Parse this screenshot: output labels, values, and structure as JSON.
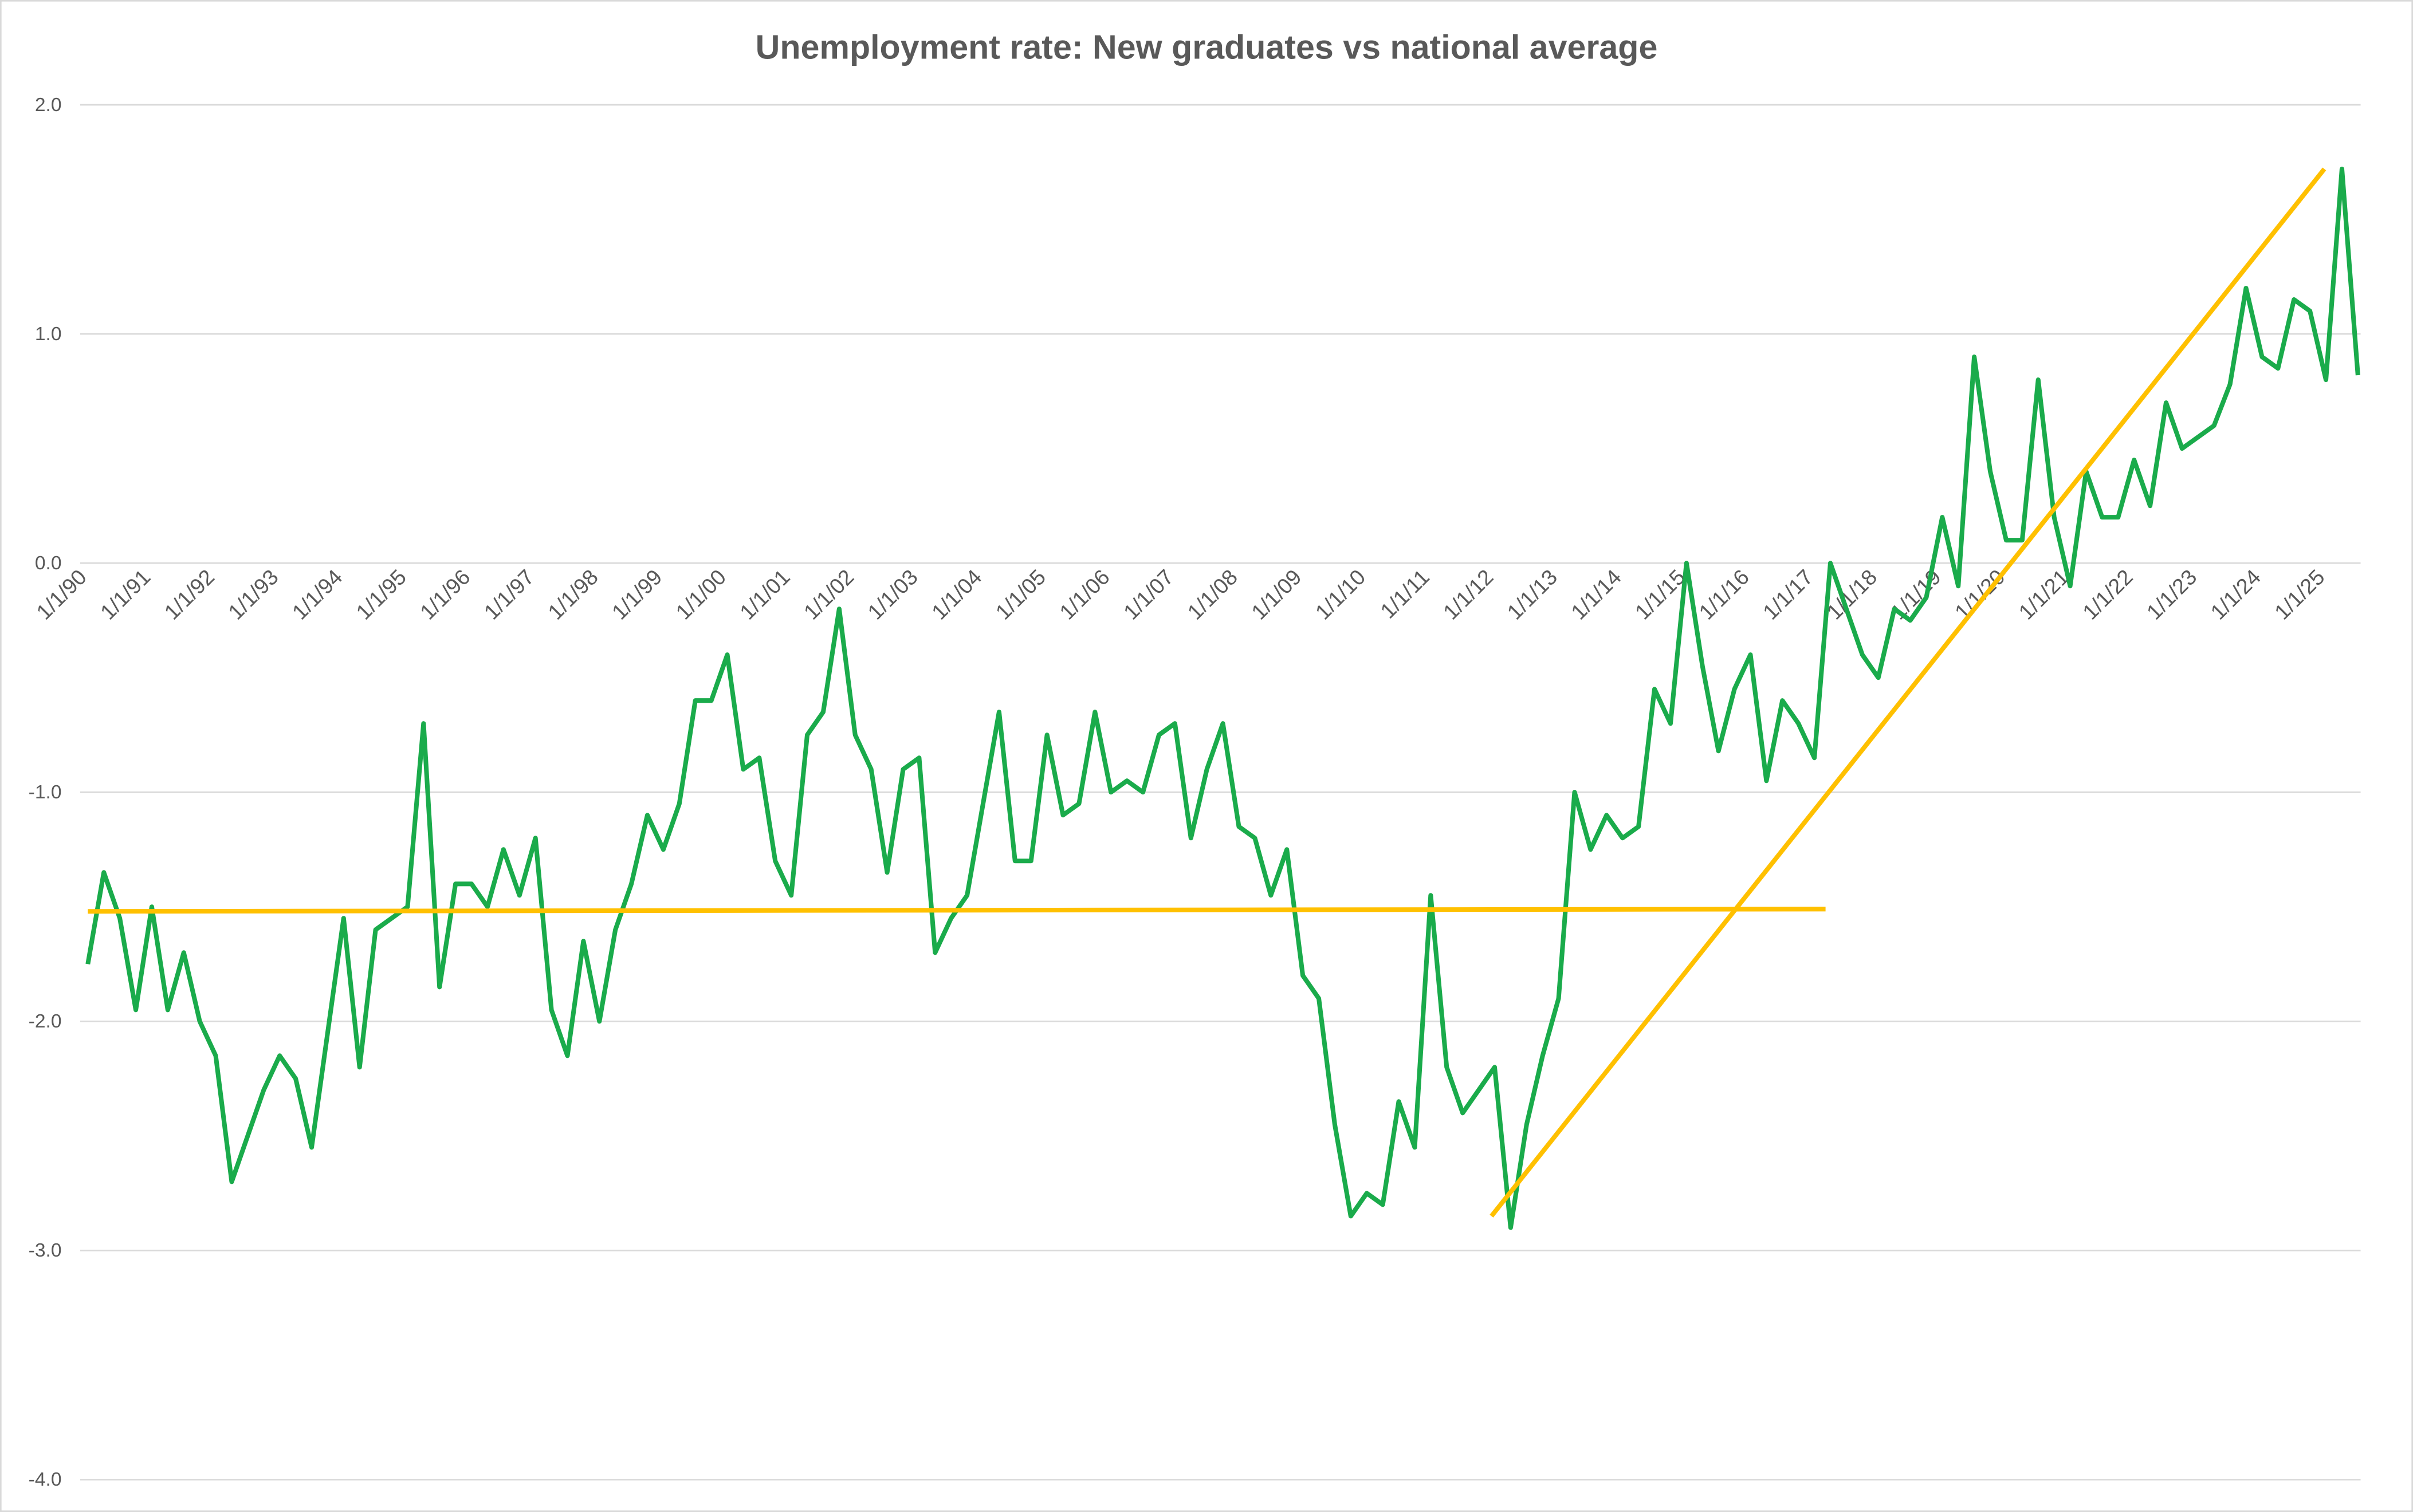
{
  "chart_data": {
    "type": "line",
    "title": "Unemployment rate: New graduates vs national average",
    "categories": [
      "1/1/90",
      null,
      null,
      null,
      "1/1/91",
      null,
      null,
      null,
      "1/1/92",
      null,
      null,
      null,
      "1/1/93",
      null,
      null,
      null,
      "1/1/94",
      null,
      null,
      null,
      "1/1/95",
      null,
      null,
      null,
      "1/1/96",
      null,
      null,
      null,
      "1/1/97",
      null,
      null,
      null,
      "1/1/98",
      null,
      null,
      null,
      "1/1/99",
      null,
      null,
      null,
      "1/1/00",
      null,
      null,
      null,
      "1/1/01",
      null,
      null,
      null,
      "1/1/02",
      null,
      null,
      null,
      "1/1/03",
      null,
      null,
      null,
      "1/1/04",
      null,
      null,
      null,
      "1/1/05",
      null,
      null,
      null,
      "1/1/06",
      null,
      null,
      null,
      "1/1/07",
      null,
      null,
      null,
      "1/1/08",
      null,
      null,
      null,
      "1/1/09",
      null,
      null,
      null,
      "1/1/10",
      null,
      null,
      null,
      "1/1/11",
      null,
      null,
      null,
      "1/1/12",
      null,
      null,
      null,
      "1/1/13",
      null,
      null,
      null,
      "1/1/14",
      null,
      null,
      null,
      "1/1/15",
      null,
      null,
      null,
      "1/1/16",
      null,
      null,
      null,
      "1/1/17",
      null,
      null,
      null,
      "1/1/18",
      null,
      null,
      null,
      "1/1/19",
      null,
      null,
      null,
      "1/1/20",
      null,
      null,
      null,
      "1/1/21",
      null,
      null,
      null,
      "1/1/22",
      null,
      null,
      null,
      "1/1/23",
      null,
      null,
      null,
      "1/1/24",
      null,
      null,
      null,
      "1/1/25",
      null,
      null
    ],
    "series": [
      {
        "color": "#1aab4b",
        "values": [
          -1.75,
          -1.35,
          -1.55,
          -1.95,
          -1.5,
          -1.95,
          -1.7,
          -2.0,
          -2.15,
          -2.7,
          -2.5,
          -2.3,
          -2.15,
          -2.25,
          -2.55,
          -2.05,
          -1.55,
          -2.2,
          -1.6,
          -1.55,
          -1.5,
          -0.7,
          -1.85,
          -1.4,
          -1.4,
          -1.5,
          -1.25,
          -1.45,
          -1.2,
          -1.95,
          -2.15,
          -1.65,
          -2.0,
          -1.6,
          -1.4,
          -1.1,
          -1.25,
          -1.05,
          -0.6,
          -0.6,
          -0.4,
          -0.9,
          -0.85,
          -1.3,
          -1.45,
          -0.75,
          -0.65,
          -0.2,
          -0.75,
          -0.9,
          -1.35,
          -0.9,
          -0.85,
          -1.7,
          -1.55,
          -1.45,
          -1.05,
          -0.65,
          -1.3,
          -1.3,
          -0.75,
          -1.1,
          -1.05,
          -0.65,
          -1.0,
          -0.95,
          -1.0,
          -0.75,
          -0.7,
          -1.2,
          -0.9,
          -0.7,
          -1.15,
          -1.2,
          -1.45,
          -1.25,
          -1.8,
          -1.9,
          -2.45,
          -2.85,
          -2.75,
          -2.8,
          -2.35,
          -2.55,
          -1.45,
          -2.2,
          -2.4,
          -2.3,
          -2.2,
          -2.9,
          -2.45,
          -2.15,
          -1.9,
          -1.0,
          -1.25,
          -1.1,
          -1.2,
          -1.15,
          -0.55,
          -0.7,
          0.0,
          -0.45,
          -0.82,
          -0.55,
          -0.4,
          -0.95,
          -0.6,
          -0.7,
          -0.85,
          0.0,
          -0.2,
          -0.4,
          -0.5,
          -0.2,
          -0.25,
          -0.15,
          0.2,
          -0.1,
          0.9,
          0.4,
          0.1,
          0.1,
          0.8,
          0.2,
          -0.1,
          0.4,
          0.2,
          0.2,
          0.45,
          0.25,
          0.7,
          0.5,
          0.55,
          0.6,
          0.78,
          1.2,
          0.9,
          0.85,
          1.15,
          1.1,
          0.8,
          1.72,
          0.82
        ]
      }
    ],
    "trendlines": [
      {
        "color": "#ffc000",
        "x": [
          0,
          108.7
        ],
        "values": [
          -1.52,
          -1.51
        ]
      },
      {
        "color": "#ffc000",
        "x": [
          87.8,
          139.9
        ],
        "values": [
          -2.85,
          1.72
        ]
      }
    ],
    "ylim": [
      -4,
      2
    ],
    "yticks": [
      {
        "value": -4,
        "label": "-4.0"
      },
      {
        "value": -3,
        "label": "-3.0"
      },
      {
        "value": -2,
        "label": "-2.0"
      },
      {
        "value": -1,
        "label": "-1.0"
      },
      {
        "value": 0,
        "label": "0.0"
      },
      {
        "value": 1,
        "label": "1.0"
      },
      {
        "value": 2,
        "label": "2.0"
      }
    ],
    "grid": true
  }
}
